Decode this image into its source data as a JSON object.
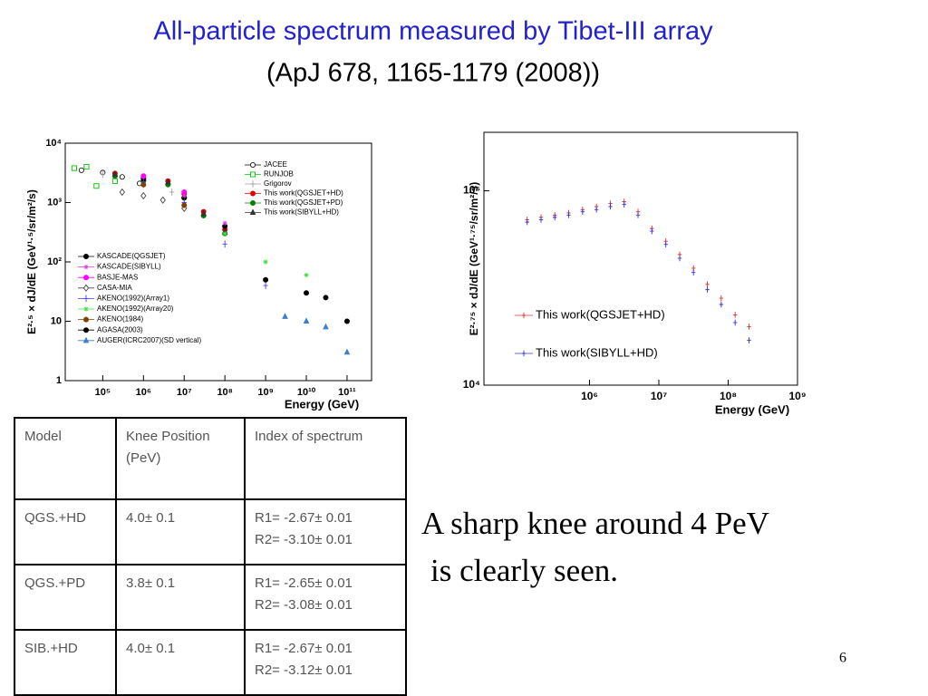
{
  "title": "All-particle spectrum measured by Tibet-III array",
  "subtitle": "(ApJ 678, 1165-1179 (2008))",
  "chart_data": [
    {
      "type": "scatter",
      "x_label": "Energy (GeV)",
      "y_label": "E²·⁵ × dJ/dE (GeV¹·⁵/sr/m²/s)",
      "xlog": true,
      "ylog": true,
      "xlim": [
        12000,
        400000000000
      ],
      "ylim": [
        1,
        10000
      ],
      "xticks": [
        {
          "value": 100000,
          "label": "10⁵"
        },
        {
          "value": 1000000,
          "label": "10⁶"
        },
        {
          "value": 10000000,
          "label": "10⁷"
        },
        {
          "value": 100000000,
          "label": "10⁸"
        },
        {
          "value": 1000000000,
          "label": "10⁹"
        },
        {
          "value": 10000000000,
          "label": "10¹⁰"
        },
        {
          "value": 100000000000,
          "label": "10¹¹"
        }
      ],
      "yticks": [
        1,
        10,
        {
          "value": 100,
          "label": "10²"
        },
        {
          "value": 1000,
          "label": "10³"
        },
        {
          "value": 10000,
          "label": "10⁴"
        }
      ],
      "series": [
        {
          "name": "JACEE",
          "color": "#000000",
          "marker": "circle-open",
          "x": [
            30000,
            100000,
            300000,
            800000
          ],
          "values": [
            3500,
            3200,
            2700,
            2100
          ]
        },
        {
          "name": "RUNJOB",
          "color": "#00c000",
          "marker": "square-open",
          "x": [
            20000,
            40000,
            70000,
            200000
          ],
          "values": [
            3800,
            4000,
            1900,
            2300
          ]
        },
        {
          "name": "Grigorov",
          "color": "#a0a0a0",
          "marker": "plus",
          "x": [
            100000,
            1000000,
            5000000
          ],
          "values": [
            3000,
            2000,
            1500
          ]
        },
        {
          "name": "This work(QGSJET+HD)",
          "color": "#e00000",
          "marker": "circle",
          "x": [
            200000,
            1000000,
            4000000,
            10000000,
            30000000,
            100000000
          ],
          "values": [
            3100,
            2600,
            2300,
            1400,
            700,
            350
          ]
        },
        {
          "name": "This work(QGSJET+PD)",
          "color": "#008000",
          "marker": "circle",
          "x": [
            200000,
            1000000,
            4000000,
            10000000,
            30000000,
            100000000
          ],
          "values": [
            2800,
            2300,
            2000,
            1200,
            600,
            300
          ]
        },
        {
          "name": "This work(SIBYLL+HD)",
          "color": "#333333",
          "marker": "triangle",
          "x": [
            200000,
            1000000,
            4000000,
            10000000,
            30000000,
            100000000
          ],
          "values": [
            3000,
            2500,
            2200,
            1300,
            650,
            320
          ]
        },
        {
          "name": "KASCADE(QGSJET)",
          "color": "#000000",
          "marker": "circle",
          "x": [
            1000000,
            10000000,
            100000000
          ],
          "values": [
            2500,
            1200,
            400
          ]
        },
        {
          "name": "KASCADE(SIBYLL)",
          "color": "#e040e0",
          "marker": "star",
          "x": [
            1000000,
            10000000,
            100000000
          ],
          "values": [
            2700,
            1300,
            450
          ]
        },
        {
          "name": "BASJE-MAS",
          "color": "#ff00ff",
          "marker": "circle",
          "x": [
            1000000,
            10000000
          ],
          "values": [
            2800,
            1500
          ]
        },
        {
          "name": "CASA-MIA",
          "color": "#444444",
          "marker": "diamond-open",
          "x": [
            300000,
            1000000,
            3000000,
            10000000
          ],
          "values": [
            1500,
            1300,
            1100,
            800
          ]
        },
        {
          "name": "AKENO(1992)(Array1)",
          "color": "#4040ff",
          "marker": "plus",
          "x": [
            1000000,
            10000000,
            100000000,
            1000000000
          ],
          "values": [
            2200,
            1000,
            200,
            40
          ]
        },
        {
          "name": "AKENO(1992)(Array20)",
          "color": "#40e040",
          "marker": "star",
          "x": [
            100000000,
            1000000000,
            10000000000
          ],
          "values": [
            300,
            100,
            60
          ]
        },
        {
          "name": "AKENO(1984)",
          "color": "#804000",
          "marker": "circle",
          "x": [
            1000000,
            10000000
          ],
          "values": [
            2000,
            900
          ]
        },
        {
          "name": "AGASA(2003)",
          "color": "#000000",
          "marker": "circle",
          "x": [
            1000000000,
            10000000000,
            30000000000,
            100000000000
          ],
          "values": [
            50,
            30,
            25,
            10
          ]
        },
        {
          "name": "AUGER(ICRC2007)(SD vertical)",
          "color": "#3a7fd0",
          "marker": "triangle",
          "x": [
            3000000000,
            10000000000,
            30000000000,
            100000000000
          ],
          "values": [
            12,
            10,
            8,
            3
          ]
        }
      ]
    },
    {
      "type": "scatter",
      "x_label": "Energy (GeV)",
      "y_label": "E²·⁷⁵ × dJ/dE (GeV¹·⁷⁵/sr/m²/s)",
      "xlog": true,
      "ylog": true,
      "xlim": [
        30000,
        1000000000
      ],
      "ylim": [
        10000,
        200000
      ],
      "xticks": [
        {
          "value": 1000000,
          "label": "10⁶"
        },
        {
          "value": 10000000,
          "label": "10⁷"
        },
        {
          "value": 100000000,
          "label": "10⁸"
        },
        {
          "value": 1000000000,
          "label": "10⁹"
        }
      ],
      "yticks": [
        {
          "value": 10000,
          "label": "10⁴"
        },
        {
          "value": 100000,
          "label": "10⁵"
        }
      ],
      "series": [
        {
          "name": "This work(QGSJET+HD)",
          "color": "#e03030",
          "marker": "plus",
          "x": [
            126000,
            200000,
            316000,
            501000,
            794000,
            1260000,
            2000000,
            3160000,
            5010000,
            7940000,
            12600000,
            20000000,
            31600000,
            50100000,
            79400000,
            126000000,
            200000000
          ],
          "values": [
            71000,
            73000,
            75000,
            77000,
            80000,
            83000,
            86000,
            88000,
            78000,
            64000,
            55000,
            47000,
            40000,
            33000,
            28000,
            23000,
            20000
          ]
        },
        {
          "name": "This work(SIBYLL+HD)",
          "color": "#3030e0",
          "marker": "plus",
          "x": [
            126000,
            200000,
            316000,
            501000,
            794000,
            1260000,
            2000000,
            3160000,
            5010000,
            7940000,
            12600000,
            20000000,
            31600000,
            50100000,
            79400000,
            126000000,
            200000000
          ],
          "values": [
            69000,
            71000,
            73000,
            75000,
            78000,
            80000,
            83000,
            85000,
            75000,
            62000,
            53000,
            45000,
            38000,
            31000,
            26000,
            21000,
            17000
          ]
        }
      ]
    }
  ],
  "table": {
    "header": [
      "Model",
      "Knee Position (PeV)",
      "Index of spectrum"
    ],
    "rows": [
      [
        "QGS.+HD",
        "4.0± 0.1",
        [
          "R1= -2.67± 0.01",
          "R2= -3.10± 0.01"
        ]
      ],
      [
        "QGS.+PD",
        "3.8± 0.1",
        [
          "R1= -2.65± 0.01",
          "R2= -3.08± 0.01"
        ]
      ],
      [
        "SIB.+HD",
        "4.0± 0.1",
        [
          "R1= -2.67± 0.01",
          "R2= -3.12± 0.01"
        ]
      ]
    ]
  },
  "note": [
    "A sharp knee around 4 PeV",
    "is clearly seen."
  ],
  "page_number": "6"
}
